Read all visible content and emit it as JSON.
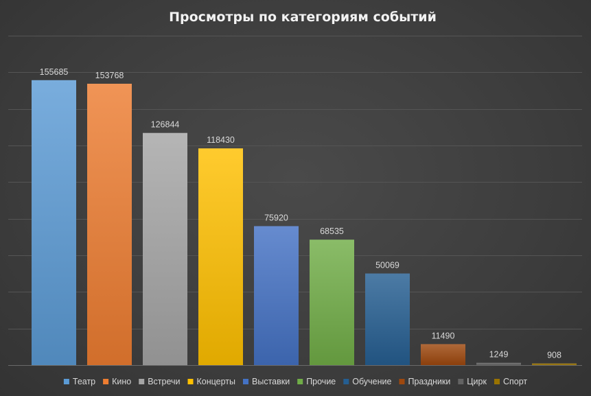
{
  "chart_data": {
    "type": "bar",
    "title": "Просмотры по категориям событий",
    "categories": [
      "Театр",
      "Кино",
      "Встречи",
      "Концерты",
      "Выставки",
      "Прочие",
      "Обучение",
      "Праздники",
      "Цирк",
      "Спорт"
    ],
    "values": [
      155685,
      153768,
      126844,
      118430,
      75920,
      68535,
      50069,
      11490,
      1249,
      908
    ],
    "colors": [
      "#5b9bd5",
      "#ed7d31",
      "#a5a5a5",
      "#ffc000",
      "#4472c4",
      "#70ad47",
      "#255e91",
      "#9e480e",
      "#636363",
      "#997300"
    ],
    "ylim": [
      0,
      180000
    ],
    "grid": true,
    "legend": "bottom"
  }
}
